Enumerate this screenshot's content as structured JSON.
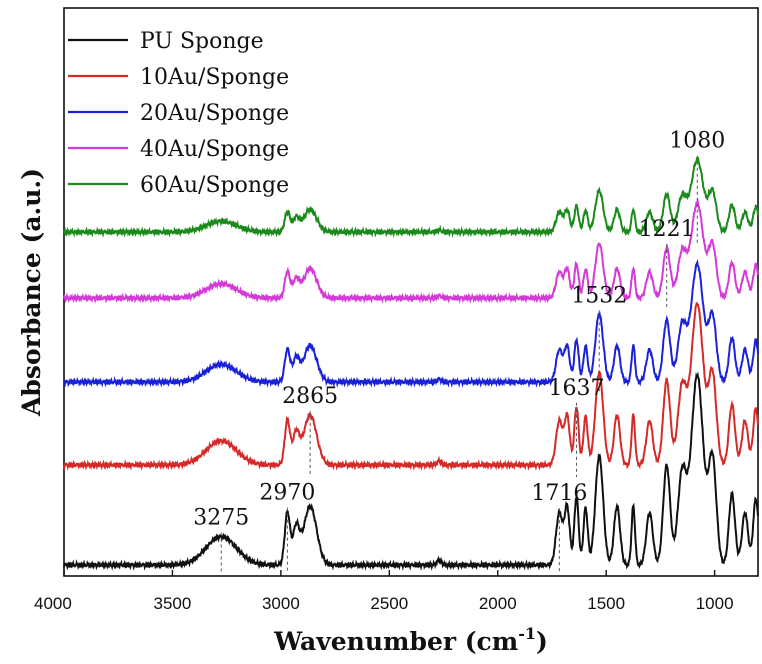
{
  "chart_data": {
    "type": "line",
    "title": "",
    "xlabel": "Wavenumber (cm",
    "xlabel_sup": "-1",
    "xlabel_close": ")",
    "ylabel": "Absorbance (a.u.)",
    "xlim": [
      4000,
      800
    ],
    "x_ticks": [
      4000,
      3500,
      3000,
      2500,
      2000,
      1500,
      1000
    ],
    "x_tick_labels": [
      "4000",
      "3500",
      "3000",
      "2500",
      "2000",
      "1500",
      "1000"
    ],
    "y_ticks_shown": false,
    "grid": false,
    "legend_position": "top-left",
    "series": [
      {
        "name": "PU Sponge",
        "color": "#111111",
        "offset": 0
      },
      {
        "name": "10Au/Sponge",
        "color": "#d42a2a",
        "offset": 1
      },
      {
        "name": "20Au/Sponge",
        "color": "#1a22d8",
        "offset": 2
      },
      {
        "name": "40Au/Sponge",
        "color": "#d43ad8",
        "offset": 3
      },
      {
        "name": "60Au/Sponge",
        "color": "#1a8a1a",
        "offset": 4
      }
    ],
    "peaks": [
      {
        "wavenumber": 4000,
        "height": 0.0,
        "width": 1
      },
      {
        "wavenumber": 3275,
        "height": 0.3,
        "width": 70
      },
      {
        "wavenumber": 2970,
        "height": 0.55,
        "width": 12
      },
      {
        "wavenumber": 2930,
        "height": 0.38,
        "width": 15
      },
      {
        "wavenumber": 2865,
        "height": 0.62,
        "width": 30
      },
      {
        "wavenumber": 2270,
        "height": 0.05,
        "width": 10
      },
      {
        "wavenumber": 1716,
        "height": 0.55,
        "width": 15
      },
      {
        "wavenumber": 1680,
        "height": 0.6,
        "width": 12
      },
      {
        "wavenumber": 1637,
        "height": 0.72,
        "width": 10
      },
      {
        "wavenumber": 1595,
        "height": 0.6,
        "width": 10
      },
      {
        "wavenumber": 1532,
        "height": 1.15,
        "width": 18
      },
      {
        "wavenumber": 1450,
        "height": 0.62,
        "width": 14
      },
      {
        "wavenumber": 1375,
        "height": 0.62,
        "width": 8
      },
      {
        "wavenumber": 1300,
        "height": 0.55,
        "width": 15
      },
      {
        "wavenumber": 1221,
        "height": 1.05,
        "width": 16
      },
      {
        "wavenumber": 1150,
        "height": 0.95,
        "width": 20
      },
      {
        "wavenumber": 1080,
        "height": 2.0,
        "width": 28
      },
      {
        "wavenumber": 1010,
        "height": 1.1,
        "width": 18
      },
      {
        "wavenumber": 920,
        "height": 0.75,
        "width": 14
      },
      {
        "wavenumber": 860,
        "height": 0.55,
        "width": 14
      },
      {
        "wavenumber": 810,
        "height": 0.7,
        "width": 12
      }
    ],
    "annotations": [
      {
        "label": "3275",
        "x": 3275,
        "series": 0
      },
      {
        "label": "2970",
        "x": 2970,
        "series": 0
      },
      {
        "label": "1716",
        "x": 1716,
        "series": 0
      },
      {
        "label": "2865",
        "x": 2865,
        "series": 1
      },
      {
        "label": "1637",
        "x": 1637,
        "series": 1
      },
      {
        "label": "1532",
        "x": 1532,
        "series": 2
      },
      {
        "label": "1221",
        "x": 1221,
        "series": 3
      },
      {
        "label": "1080",
        "x": 1080,
        "series": 4
      }
    ]
  }
}
